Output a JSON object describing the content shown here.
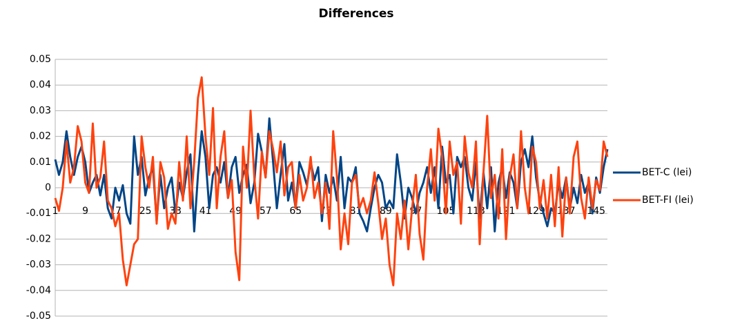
{
  "chart_data": {
    "type": "line",
    "title": "Differences",
    "categories": [
      "1",
      null,
      null,
      null,
      null,
      null,
      null,
      null,
      "9",
      null,
      null,
      null,
      null,
      null,
      null,
      null,
      "17",
      null,
      null,
      null,
      null,
      null,
      null,
      null,
      "25",
      null,
      null,
      null,
      null,
      null,
      null,
      null,
      "33",
      null,
      null,
      null,
      null,
      null,
      null,
      null,
      "41",
      null,
      null,
      null,
      null,
      null,
      null,
      null,
      "49",
      null,
      null,
      null,
      null,
      null,
      null,
      null,
      "57",
      null,
      null,
      null,
      null,
      null,
      null,
      null,
      "65",
      null,
      null,
      null,
      null,
      null,
      null,
      null,
      "73",
      null,
      null,
      null,
      null,
      null,
      null,
      null,
      "81",
      null,
      null,
      null,
      null,
      null,
      null,
      null,
      "89",
      null,
      null,
      null,
      null,
      null,
      null,
      null,
      "97",
      null,
      null,
      null,
      null,
      null,
      null,
      null,
      "105",
      null,
      null,
      null,
      null,
      null,
      null,
      null,
      "113",
      null,
      null,
      null,
      null,
      null,
      null,
      null,
      "121",
      null,
      null,
      null,
      null,
      null,
      null,
      null,
      "129",
      null,
      null,
      null,
      null,
      null,
      null,
      null,
      "137",
      null,
      null,
      null,
      null,
      null,
      null,
      null,
      "145",
      null,
      null,
      null
    ],
    "series": [
      {
        "name": "BET-C (lei)",
        "color": "#004586",
        "values": [
          0.011,
          0.005,
          0.01,
          0.022,
          0.012,
          0.005,
          0.012,
          0.016,
          0.01,
          -0.002,
          0.002,
          0.005,
          -0.003,
          0.005,
          -0.008,
          -0.012,
          0,
          -0.005,
          0.001,
          -0.01,
          -0.014,
          0.02,
          0.005,
          0.012,
          -0.003,
          0.004,
          0.008,
          -0.013,
          0.005,
          -0.008,
          0,
          0.004,
          -0.01,
          0.002,
          -0.004,
          0.006,
          0.013,
          -0.017,
          0.005,
          0.022,
          0.012,
          -0.008,
          0.005,
          0.008,
          0.002,
          0.01,
          -0.004,
          0.008,
          0.012,
          -0.002,
          0.005,
          0.009,
          -0.006,
          0.002,
          0.021,
          0.014,
          0.004,
          0.027,
          0.01,
          -0.008,
          0.005,
          0.017,
          -0.005,
          0.002,
          -0.008,
          0.01,
          0.006,
          0.001,
          0.01,
          0.003,
          0.008,
          -0.013,
          0.005,
          -0.002,
          0.004,
          -0.005,
          0.012,
          -0.008,
          0.004,
          0.002,
          0.008,
          -0.01,
          -0.013,
          -0.017,
          -0.008,
          0,
          0.005,
          0.002,
          -0.008,
          -0.005,
          -0.008,
          0.013,
          0.002,
          -0.012,
          0,
          -0.004,
          -0.01,
          -0.002,
          0.002,
          0.008,
          -0.002,
          0.008,
          -0.008,
          0.016,
          0.002,
          0.005,
          -0.01,
          0.012,
          0.008,
          0.012,
          0,
          -0.005,
          0.01,
          -0.012,
          0.006,
          -0.008,
          0.008,
          -0.017,
          0.002,
          0.008,
          -0.004,
          0.006,
          0.002,
          -0.008,
          0.01,
          0.015,
          0.008,
          0.02,
          0.004,
          -0.005,
          -0.01,
          -0.015,
          -0.008,
          -0.01,
          0.002,
          -0.004,
          0.004,
          -0.008,
          0,
          -0.006,
          0.005,
          -0.002,
          0.002,
          -0.01,
          0.004,
          -0.002,
          0.008,
          0.015
        ]
      },
      {
        "name": "BET-FI (lei)",
        "color": "#ff420e",
        "values": [
          -0.004,
          -0.009,
          0,
          0.018,
          0.002,
          0.008,
          0.024,
          0.018,
          0.002,
          -0.002,
          0.025,
          0,
          0.004,
          0.018,
          -0.005,
          -0.008,
          -0.015,
          -0.01,
          -0.028,
          -0.038,
          -0.03,
          -0.022,
          -0.02,
          0.02,
          0.008,
          0,
          0.012,
          -0.014,
          0.01,
          0.004,
          -0.016,
          -0.01,
          -0.014,
          0.01,
          -0.005,
          0.02,
          -0.008,
          0.01,
          0.035,
          0.043,
          0.02,
          0.005,
          0.031,
          -0.008,
          0.012,
          0.022,
          -0.004,
          0.003,
          -0.025,
          -0.036,
          0.016,
          0,
          0.03,
          0.004,
          -0.012,
          0.014,
          0.004,
          0.022,
          0.015,
          0.006,
          0.018,
          -0.003,
          0.008,
          0.01,
          -0.008,
          0.005,
          -0.005,
          0,
          0.012,
          -0.004,
          0.002,
          -0.01,
          0.002,
          -0.016,
          0.022,
          0.004,
          -0.024,
          -0.01,
          -0.022,
          0.002,
          0.005,
          -0.008,
          -0.004,
          -0.01,
          -0.005,
          0.006,
          -0.006,
          -0.02,
          -0.012,
          -0.03,
          -0.038,
          -0.01,
          -0.02,
          -0.005,
          -0.024,
          -0.008,
          0.005,
          -0.018,
          -0.028,
          0,
          0.015,
          -0.005,
          0.023,
          0.012,
          -0.01,
          0.018,
          0.005,
          0.01,
          -0.014,
          0.02,
          0.006,
          0,
          0.018,
          -0.022,
          0.006,
          0.028,
          -0.004,
          0.005,
          -0.012,
          0.015,
          -0.02,
          0.004,
          0.013,
          -0.008,
          0.022,
          0,
          -0.01,
          0.016,
          0.01,
          -0.008,
          0.003,
          -0.012,
          0.005,
          -0.015,
          0.008,
          -0.019,
          0.004,
          -0.01,
          0.012,
          0.018,
          -0.004,
          -0.012,
          0.004,
          -0.008,
          0.003,
          -0.001,
          0.018,
          0.012
        ]
      }
    ],
    "ylim": [
      -0.05,
      0.05
    ],
    "yticks": [
      -0.05,
      -0.04,
      -0.03,
      -0.02,
      -0.01,
      0,
      0.01,
      0.02,
      0.03,
      0.04,
      0.05
    ],
    "grid": true,
    "legend": "right"
  }
}
